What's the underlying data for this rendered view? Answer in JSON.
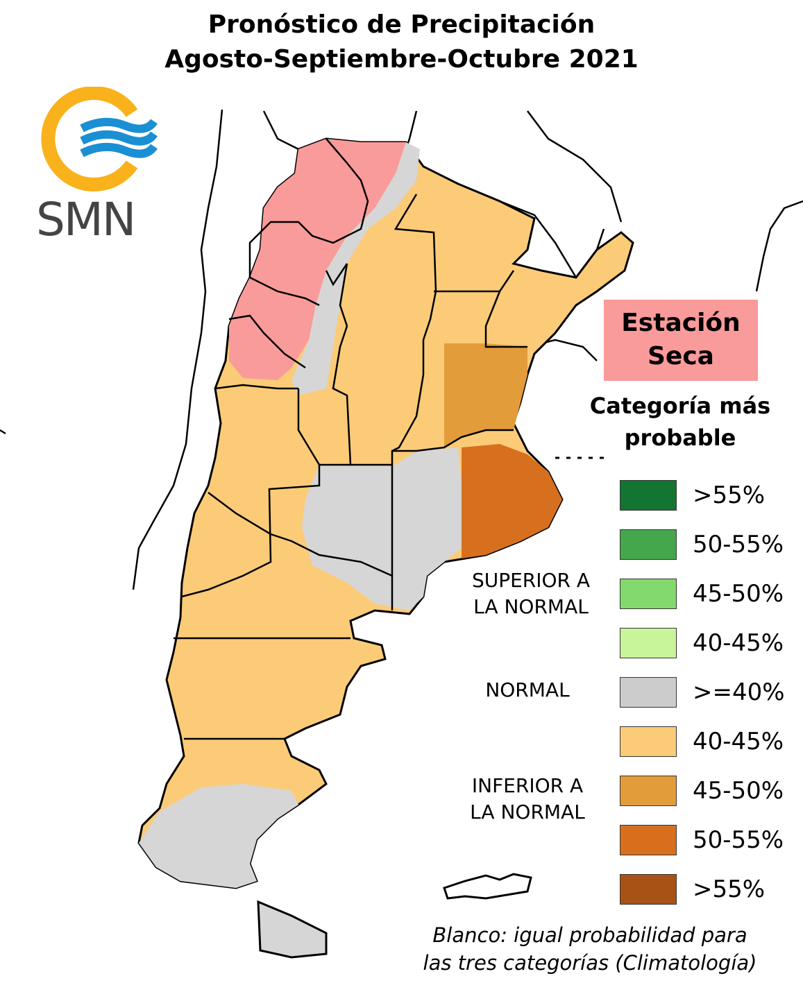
{
  "title": {
    "line1": "Pronóstico de Precipitación",
    "line2": "Agosto-Septiembre-Octubre 2021"
  },
  "logo": {
    "text": "SMN",
    "ring_color": "#f9b21b",
    "wave_color": "#1b8fd4"
  },
  "dry_season": {
    "line1": "Estación",
    "line2": "Seca",
    "color": "#f99b9a"
  },
  "legend": {
    "title_line1": "Categoría más",
    "title_line2": "probable",
    "groups": {
      "above": [
        "SUPERIOR A",
        "LA NORMAL"
      ],
      "normal": [
        "NORMAL"
      ],
      "below": [
        "INFERIOR A",
        "LA NORMAL"
      ]
    },
    "items": [
      {
        "label": ">55%",
        "color": "#137531"
      },
      {
        "label": "50-55%",
        "color": "#45a64b"
      },
      {
        "label": "45-50%",
        "color": "#84d96e"
      },
      {
        "label": "40-45%",
        "color": "#c9f59a"
      },
      {
        "label": ">=40%",
        "color": "#cccccc"
      },
      {
        "label": "40-45%",
        "color": "#fbcb78"
      },
      {
        "label": "45-50%",
        "color": "#e39c3a"
      },
      {
        "label": "50-55%",
        "color": "#d6701f"
      },
      {
        "label": ">55%",
        "color": "#a85215"
      }
    ]
  },
  "note": {
    "line1": "Blanco: igual probabilidad para",
    "line2": "las tres categorías (Climatología)"
  }
}
